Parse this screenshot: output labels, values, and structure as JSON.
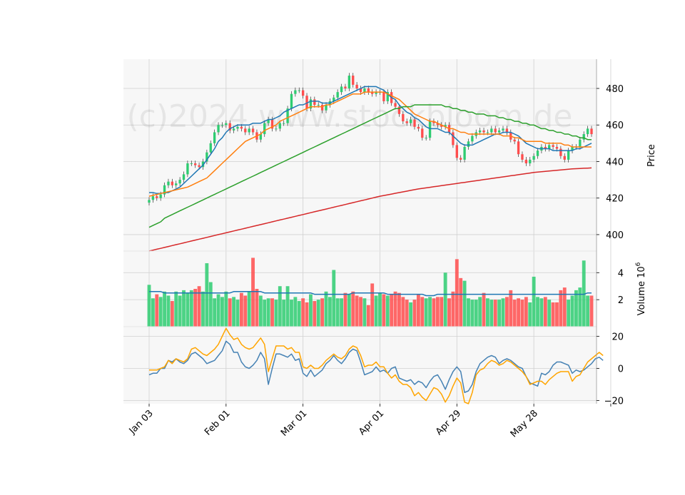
{
  "watermark": "(c)2024 www.stockbloom.de",
  "colors": {
    "panel_bg": "#f7f7f7",
    "grid": "#d0d0d0",
    "up": "#2ecc71",
    "down": "#ff4d4d",
    "ma_blue": "#1f77b4",
    "ma_orange": "#ff7f0e",
    "ma_green": "#2ca02c",
    "ma_red": "#d62728",
    "osc_blue": "#4682b4",
    "osc_orange": "#ffa500"
  },
  "chart_data": [
    {
      "type": "candlestick",
      "panel": "price",
      "ylabel": "Price",
      "ylim": [
        391,
        496
      ],
      "yticks": [
        400,
        420,
        440,
        460,
        480
      ],
      "xticks": [
        {
          "label": "Jan 03",
          "index": 0
        },
        {
          "label": "Feb 01",
          "index": 20
        },
        {
          "label": "Mar 01",
          "index": 40
        },
        {
          "label": "Apr 01",
          "index": 60
        },
        {
          "label": "Apr 29",
          "index": 80
        },
        {
          "label": "May 28",
          "index": 100
        },
        {
          "label": "",
          "index": 120
        }
      ],
      "closes": [
        419,
        421,
        420,
        422,
        427,
        429,
        427,
        428,
        430,
        433,
        439,
        439,
        438,
        437,
        440,
        445,
        450,
        456,
        460,
        460,
        461,
        457,
        458,
        459,
        458,
        456,
        458,
        456,
        452,
        455,
        461,
        463,
        458,
        458,
        461,
        461,
        469,
        477,
        479,
        479,
        476,
        469,
        474,
        471,
        471,
        468,
        471,
        473,
        475,
        478,
        481,
        480,
        487,
        482,
        480,
        478,
        480,
        478,
        477,
        478,
        478,
        473,
        478,
        472,
        470,
        466,
        462,
        461,
        463,
        459,
        458,
        453,
        453,
        462,
        461,
        460,
        459,
        460,
        456,
        449,
        442,
        441,
        448,
        451,
        454,
        456,
        457,
        456,
        456,
        458,
        456,
        457,
        458,
        456,
        452,
        451,
        444,
        441,
        439,
        441,
        443,
        446,
        448,
        447,
        449,
        448,
        447,
        443,
        441,
        446,
        448,
        448,
        452,
        455,
        458,
        455
      ],
      "volume_ylabel": "Volume  10^6",
      "volume_ylim": [
        0,
        5.6
      ],
      "volume_yticks": [
        2,
        4
      ],
      "volumes": [
        3.1,
        2.1,
        2.4,
        2.2,
        2.6,
        2.3,
        1.9,
        2.6,
        2.3,
        2.7,
        2.5,
        2.7,
        2.8,
        3.0,
        2.6,
        4.7,
        3.3,
        2.1,
        2.4,
        2.2,
        2.6,
        2.1,
        2.2,
        2.0,
        2.5,
        2.3,
        2.6,
        5.1,
        2.8,
        2.3,
        2.0,
        2.1,
        2.1,
        2.0,
        3.0,
        2.0,
        3.0,
        2.0,
        2.2,
        1.9,
        2.1,
        1.8,
        2.4,
        1.9,
        2.0,
        2.1,
        2.6,
        2.2,
        4.2,
        2.1,
        2.1,
        2.5,
        2.4,
        2.6,
        2.3,
        2.2,
        2.1,
        1.6,
        3.2,
        2.3,
        2.5,
        2.4,
        2.3,
        2.4,
        2.6,
        2.5,
        2.2,
        2.0,
        1.8,
        2.0,
        2.4,
        2.2,
        2.1,
        2.2,
        2.1,
        2.2,
        2.2,
        4.0,
        2.1,
        2.6,
        5.0,
        3.6,
        3.4,
        2.1,
        2.0,
        2.0,
        2.2,
        2.5,
        2.1,
        2.0,
        2.0,
        2.0,
        2.1,
        2.2,
        2.7,
        2.0,
        2.1,
        2.0,
        2.2,
        1.8,
        3.7,
        2.2,
        2.1,
        2.2,
        2.0,
        1.8,
        1.8,
        2.7,
        2.9,
        2.0,
        2.3,
        2.7,
        2.9,
        4.9,
        2.3,
        2.3
      ],
      "volume_ma": [
        2.6,
        2.6,
        2.6,
        2.6,
        2.5,
        2.5,
        2.5,
        2.5,
        2.5,
        2.5,
        2.5,
        2.5,
        2.5,
        2.5,
        2.5,
        2.5,
        2.5,
        2.5,
        2.5,
        2.5,
        2.5,
        2.5,
        2.6,
        2.6,
        2.6,
        2.6,
        2.6,
        2.6,
        2.6,
        2.6,
        2.5,
        2.5,
        2.5,
        2.5,
        2.5,
        2.5,
        2.5,
        2.5,
        2.5,
        2.5,
        2.5,
        2.5,
        2.5,
        2.4,
        2.4,
        2.4,
        2.4,
        2.4,
        2.4,
        2.4,
        2.4,
        2.4,
        2.4,
        2.5,
        2.5,
        2.5,
        2.5,
        2.5,
        2.5,
        2.5,
        2.5,
        2.5,
        2.4,
        2.4,
        2.4,
        2.4,
        2.4,
        2.4,
        2.4,
        2.4,
        2.4,
        2.4,
        2.3,
        2.3,
        2.3,
        2.4,
        2.4,
        2.4,
        2.4,
        2.4,
        2.4,
        2.4,
        2.4,
        2.4,
        2.4,
        2.4,
        2.4,
        2.4,
        2.4,
        2.4,
        2.4,
        2.4,
        2.4,
        2.4,
        2.4,
        2.4,
        2.4,
        2.4,
        2.4,
        2.4,
        2.4,
        2.4,
        2.4,
        2.4,
        2.4,
        2.4,
        2.4,
        2.4,
        2.4,
        2.4,
        2.4,
        2.4,
        2.4,
        2.4,
        2.5,
        2.5
      ],
      "ma_lines": [
        {
          "color_key": "ma_blue",
          "values": [
            423,
            423,
            422.5,
            422.5,
            423,
            423,
            424,
            425,
            426,
            428,
            430,
            432,
            434,
            436,
            438,
            441,
            444,
            447,
            451,
            453,
            456,
            458,
            459,
            460,
            460,
            460,
            460,
            461,
            461,
            461,
            462,
            463,
            463,
            464,
            465,
            467,
            468,
            469,
            470,
            471,
            471,
            472,
            473,
            473,
            473,
            472,
            472,
            472,
            473,
            474,
            475,
            476,
            477,
            478,
            479,
            480,
            481,
            481,
            481,
            481,
            480,
            479,
            477,
            475,
            474,
            471,
            469,
            467,
            466,
            464,
            463,
            461,
            459,
            458,
            458,
            458,
            457,
            456,
            456,
            454,
            452,
            450,
            449,
            449,
            449,
            450,
            451,
            452,
            453,
            454,
            455,
            455,
            456,
            456,
            456,
            455,
            454,
            452,
            450,
            449,
            448,
            447,
            447,
            447,
            447,
            446,
            446,
            446,
            446,
            446,
            446,
            447,
            447,
            448,
            449,
            450
          ]
        },
        {
          "color_key": "ma_orange",
          "values": [
            421,
            421.5,
            422,
            422.5,
            423,
            423.5,
            424,
            424.5,
            425,
            425.5,
            426,
            427,
            428,
            429,
            430,
            431,
            433,
            435,
            437,
            439,
            441,
            443,
            445,
            447,
            449,
            451,
            452,
            453,
            454,
            455,
            457,
            458,
            459,
            460,
            462,
            463,
            464,
            465,
            466,
            467,
            468,
            469,
            470,
            470,
            470,
            470,
            471,
            471,
            472,
            473,
            474,
            475,
            476,
            477,
            477,
            477,
            478,
            478,
            478,
            478,
            478,
            478,
            477,
            476,
            475,
            474,
            472,
            470,
            468,
            466,
            465,
            464,
            463,
            462,
            462,
            461,
            460,
            459,
            458,
            458,
            457,
            456,
            456,
            455,
            455,
            455,
            455,
            455,
            455,
            455,
            455,
            455,
            454,
            454,
            454,
            453,
            453,
            452,
            451,
            451,
            451,
            451,
            451,
            450,
            450,
            450,
            450,
            450,
            449,
            449,
            448,
            448,
            448,
            448,
            448,
            448
          ]
        },
        {
          "color_key": "ma_green",
          "values": [
            404,
            405,
            406,
            407,
            409,
            410,
            411,
            412,
            413,
            414,
            415,
            416,
            417,
            418,
            419,
            420,
            421,
            422,
            423,
            424,
            425,
            426,
            427,
            428,
            429,
            430,
            431,
            432,
            433,
            434,
            435,
            436,
            437,
            438,
            439,
            440,
            441,
            442,
            443,
            444,
            445,
            446,
            447,
            448,
            449,
            450,
            451,
            452,
            453,
            454,
            455,
            456,
            457,
            458,
            459,
            460,
            461,
            462,
            463,
            464,
            465,
            466,
            467,
            468,
            469,
            469,
            470,
            470,
            470,
            471,
            471,
            471,
            471,
            471,
            471,
            471,
            471,
            470,
            470,
            469,
            469,
            468,
            468,
            467,
            467,
            466,
            466,
            466,
            465,
            465,
            465,
            464,
            464,
            463,
            463,
            462,
            462,
            461,
            461,
            460,
            460,
            459,
            458,
            458,
            457,
            457,
            456,
            456,
            455,
            455,
            454,
            454,
            453,
            453,
            452,
            452
          ]
        },
        {
          "color_key": "ma_red",
          "values": [
            391,
            391.5,
            392,
            392.5,
            393,
            393.5,
            394,
            394.5,
            395,
            395.5,
            396,
            396.5,
            397,
            397.5,
            398,
            398.5,
            399,
            399.5,
            400,
            400.5,
            401,
            401.5,
            402,
            402.5,
            403,
            403.5,
            404,
            404.5,
            405,
            405.5,
            406,
            406.5,
            407,
            407.5,
            408,
            408.5,
            409,
            409.5,
            410,
            410.5,
            411,
            411.5,
            412,
            412.5,
            413,
            413.5,
            414,
            414.5,
            415,
            415.5,
            416,
            416.5,
            417,
            417.5,
            418,
            418.5,
            419,
            419.5,
            420,
            420.5,
            421,
            421.4,
            421.8,
            422.2,
            422.6,
            423,
            423.4,
            423.8,
            424.2,
            424.6,
            425,
            425.3,
            425.6,
            425.9,
            426.2,
            426.5,
            426.8,
            427.1,
            427.4,
            427.7,
            428,
            428.3,
            428.6,
            428.9,
            429.2,
            429.5,
            429.8,
            430.1,
            430.4,
            430.7,
            431,
            431.3,
            431.6,
            431.9,
            432.2,
            432.5,
            432.8,
            433.1,
            433.4,
            433.7,
            434,
            434.2,
            434.4,
            434.6,
            434.8,
            435,
            435.2,
            435.4,
            435.6,
            435.8,
            436,
            436.1,
            436.2,
            436.3,
            436.4,
            436.5
          ]
        }
      ]
    },
    {
      "type": "line",
      "panel": "oscillator",
      "ylim": [
        -22,
        26
      ],
      "yticks": [
        -20,
        0,
        20
      ],
      "series": [
        {
          "color_key": "osc_blue",
          "values": [
            -4,
            -3,
            -3,
            0,
            0,
            5,
            4,
            6,
            4,
            3,
            5,
            9,
            10,
            8,
            6,
            3,
            4,
            5,
            8,
            11,
            17,
            15,
            10,
            10,
            4,
            1,
            0,
            2,
            5,
            10,
            6,
            -10,
            0,
            9,
            9,
            8,
            7,
            9,
            5,
            6,
            -3,
            -5,
            -1,
            -5,
            -3,
            -1,
            3,
            5,
            8,
            5,
            3,
            6,
            10,
            12,
            11,
            4,
            -4,
            -3,
            -2,
            1,
            -2,
            -1,
            -3,
            0,
            1,
            -6,
            -7,
            -8,
            -7,
            -10,
            -8,
            -9,
            -12,
            -8,
            -5,
            -4,
            -8,
            -13,
            -7,
            -2,
            1,
            -2,
            -15,
            -14,
            -10,
            -2,
            3,
            5,
            7,
            8,
            7,
            3,
            5,
            6,
            5,
            3,
            1,
            0,
            -5,
            -9,
            -10,
            -11,
            -3,
            -4,
            -2,
            2,
            4,
            4,
            3,
            2,
            -3,
            -1,
            -2,
            -1,
            1,
            3,
            6,
            7,
            5
          ]
        },
        {
          "color_key": "osc_orange",
          "values": [
            -1,
            -1,
            -1,
            0,
            1,
            5,
            3,
            6,
            5,
            4,
            6,
            12,
            13,
            11,
            9,
            8,
            10,
            12,
            15,
            20,
            25,
            21,
            18,
            19,
            15,
            13,
            12,
            13,
            16,
            19,
            15,
            -2,
            6,
            14,
            14,
            14,
            12,
            13,
            10,
            10,
            1,
            0,
            2,
            0,
            0,
            2,
            5,
            7,
            9,
            7,
            6,
            8,
            12,
            14,
            13,
            8,
            1,
            2,
            2,
            4,
            1,
            1,
            -3,
            -6,
            -4,
            -8,
            -10,
            -10,
            -12,
            -17,
            -15,
            -18,
            -20,
            -16,
            -12,
            -13,
            -16,
            -21,
            -17,
            -11,
            -6,
            -9,
            -21,
            -22,
            -15,
            -4,
            -1,
            0,
            3,
            5,
            4,
            2,
            3,
            5,
            4,
            2,
            0,
            -2,
            -5,
            -10,
            -9,
            -8,
            -8,
            -10,
            -7,
            -5,
            -3,
            -2,
            -2,
            -2,
            -8,
            -5,
            -4,
            0,
            4,
            6,
            8,
            10,
            8
          ]
        }
      ]
    }
  ]
}
